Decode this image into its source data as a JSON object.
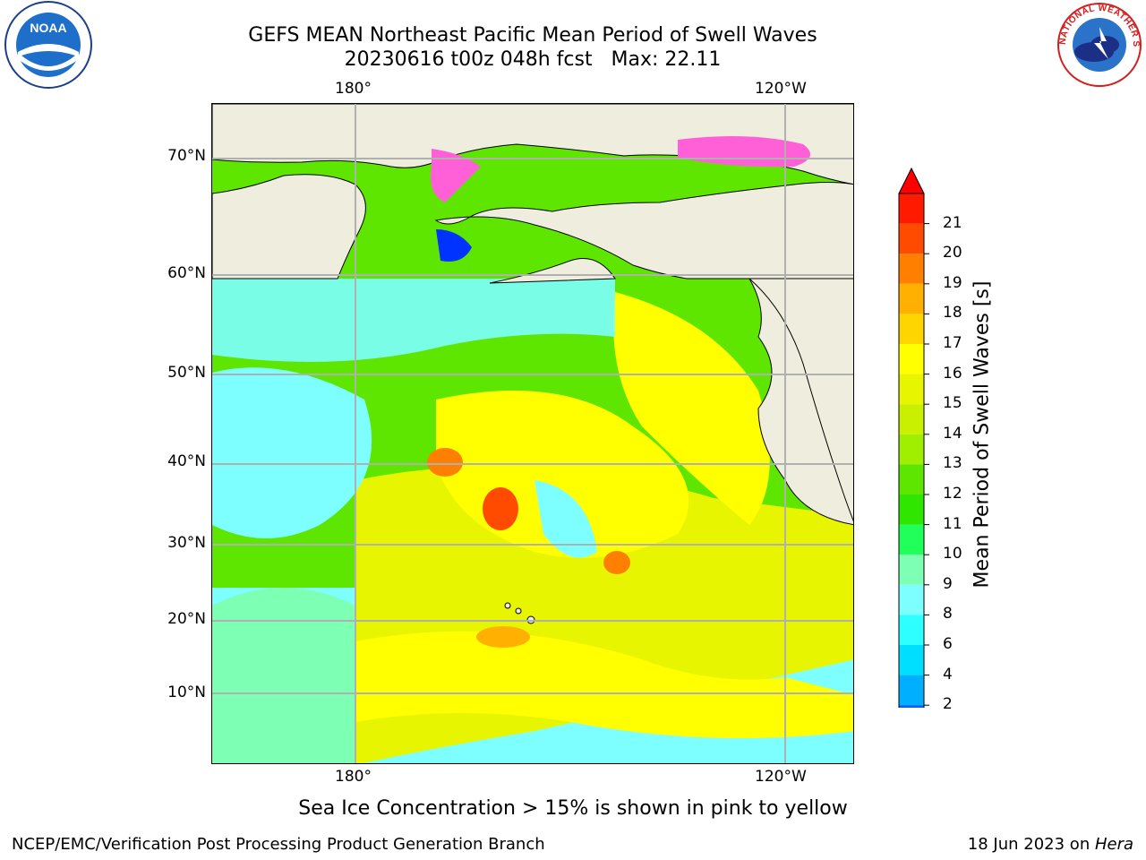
{
  "title_line1": "GEFS MEAN Northeast Pacific Mean Period of Swell Waves",
  "title_line2": "20230616 t00z 048h fcst   Max: 22.11",
  "top_lon_labels": [
    "180°",
    "120°W"
  ],
  "bottom_lon_labels": [
    "180°",
    "120°W"
  ],
  "lat_labels": [
    "70°N",
    "60°N",
    "50°N",
    "40°N",
    "30°N",
    "20°N",
    "10°N"
  ],
  "colorbar": {
    "label": "Mean Period of Swell Waves [s]",
    "ticks": [
      "21",
      "20",
      "19",
      "18",
      "17",
      "16",
      "15",
      "14",
      "13",
      "12",
      "11",
      "10",
      "9",
      "8",
      "6",
      "4",
      "2"
    ],
    "colors": [
      "#ff1a00",
      "#ff4b00",
      "#ff7f00",
      "#ffb000",
      "#ffd500",
      "#ffff00",
      "#e8f500",
      "#c8f000",
      "#a0ee00",
      "#5fe600",
      "#2ee600",
      "#21ff5a",
      "#7dffb4",
      "#7dffff",
      "#2effff",
      "#00dfff",
      "#00b0ff",
      "#005fff"
    ],
    "under_color": "#0000ff",
    "over_color": "#ff0000"
  },
  "note": "Sea Ice Concentration > 15% is shown in pink to yellow",
  "footer_left": "NCEP/EMC/Verification Post Processing Product Generation Branch",
  "footer_date": "18 Jun 2023 on ",
  "footer_machine": "Hera",
  "logo_left_text": "NOAA",
  "logo_right_text": "NATIONAL WEATHER SERVICE"
}
